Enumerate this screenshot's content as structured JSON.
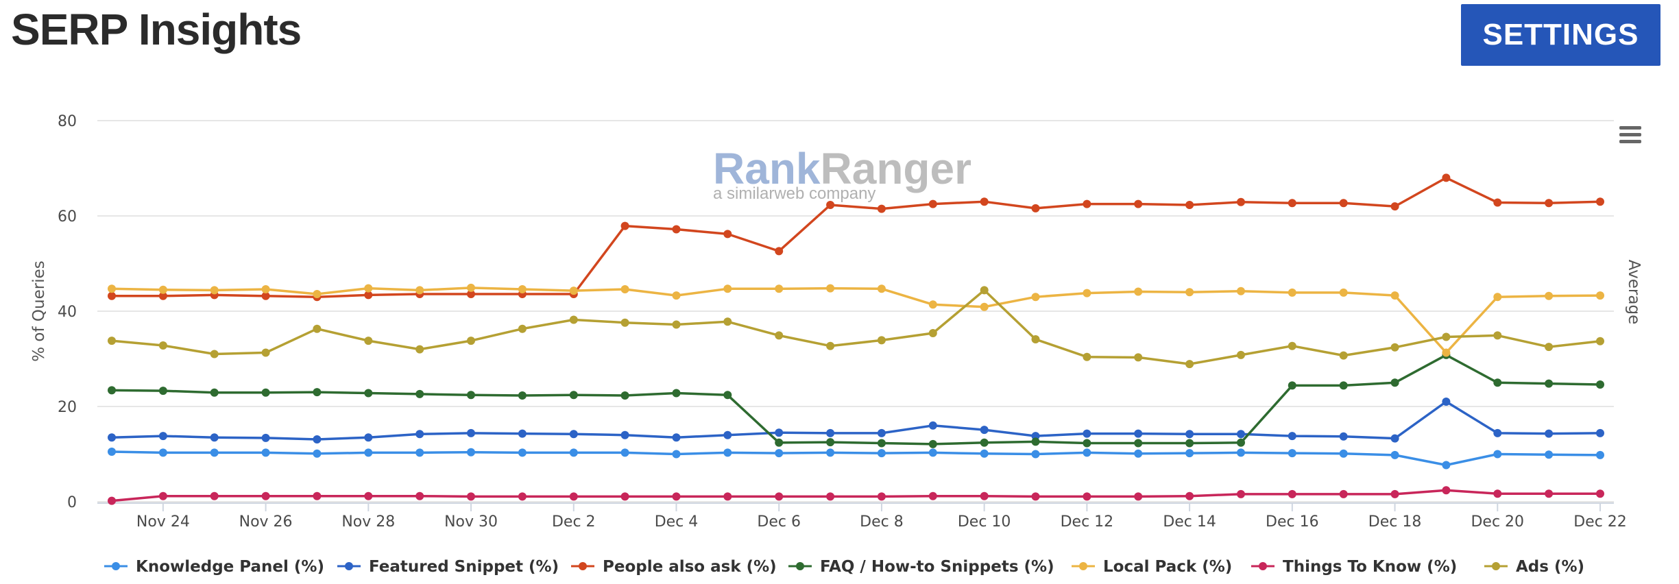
{
  "page": {
    "title": "SERP Insights",
    "settings_label": "SETTINGS"
  },
  "watermark": {
    "brand_first": "Rank",
    "brand_second": "Ranger",
    "subtitle": "a similarweb company"
  },
  "colors": {
    "settings_button": "#2556b8",
    "gridline": "#e6e6e6"
  },
  "chart_data": {
    "type": "line",
    "xlabel": "",
    "ylabel": "% of Queries",
    "ylabel_right": "Average",
    "ylim": [
      0,
      80
    ],
    "yticks": [
      0,
      20,
      40,
      60,
      80
    ],
    "grid": true,
    "legend_position": "bottom",
    "x": [
      "Nov 23",
      "Nov 24",
      "Nov 25",
      "Nov 26",
      "Nov 27",
      "Nov 28",
      "Nov 29",
      "Nov 30",
      "Dec 1",
      "Dec 2",
      "Dec 3",
      "Dec 4",
      "Dec 5",
      "Dec 6",
      "Dec 7",
      "Dec 8",
      "Dec 9",
      "Dec 10",
      "Dec 11",
      "Dec 12",
      "Dec 13",
      "Dec 14",
      "Dec 15",
      "Dec 16",
      "Dec 17",
      "Dec 18",
      "Dec 19",
      "Dec 20",
      "Dec 21",
      "Dec 22"
    ],
    "x_tick_labels": [
      "Nov 24",
      "Nov 26",
      "Nov 28",
      "Nov 30",
      "Dec 2",
      "Dec 4",
      "Dec 6",
      "Dec 8",
      "Dec 10",
      "Dec 12",
      "Dec 14",
      "Dec 16",
      "Dec 18",
      "Dec 20",
      "Dec 22"
    ],
    "series": [
      {
        "name": "Knowledge Panel (%)",
        "color": "#3a8ee6",
        "values": [
          10.5,
          10.3,
          10.3,
          10.3,
          10.1,
          10.3,
          10.3,
          10.4,
          10.3,
          10.3,
          10.3,
          10.0,
          10.3,
          10.2,
          10.3,
          10.2,
          10.3,
          10.1,
          10.0,
          10.3,
          10.1,
          10.2,
          10.3,
          10.2,
          10.1,
          9.8,
          7.7,
          10.0,
          9.9,
          9.8
        ]
      },
      {
        "name": "Featured Snippet (%)",
        "color": "#2c63c6",
        "values": [
          13.5,
          13.8,
          13.5,
          13.4,
          13.1,
          13.5,
          14.2,
          14.4,
          14.3,
          14.2,
          14.0,
          13.5,
          14.0,
          14.5,
          14.4,
          14.4,
          16.0,
          15.1,
          13.8,
          14.3,
          14.3,
          14.2,
          14.2,
          13.8,
          13.7,
          13.3,
          21.0,
          14.4,
          14.3,
          14.4
        ]
      },
      {
        "name": "People also ask (%)",
        "color": "#d2461e",
        "values": [
          43.2,
          43.2,
          43.4,
          43.2,
          43.0,
          43.4,
          43.6,
          43.6,
          43.6,
          43.6,
          57.9,
          57.2,
          56.2,
          52.6,
          62.3,
          61.5,
          62.5,
          63.0,
          61.6,
          62.5,
          62.5,
          62.3,
          62.9,
          62.7,
          62.7,
          62.0,
          68.0,
          62.8,
          62.7,
          63.0
        ]
      },
      {
        "name": "FAQ / How-to Snippets (%)",
        "color": "#2e6b30",
        "values": [
          23.4,
          23.3,
          22.9,
          22.9,
          23.0,
          22.8,
          22.6,
          22.4,
          22.3,
          22.4,
          22.3,
          22.8,
          22.4,
          12.4,
          12.5,
          12.3,
          12.1,
          12.4,
          12.6,
          12.3,
          12.3,
          12.3,
          12.4,
          24.4,
          24.4,
          25.0,
          30.8,
          25.0,
          24.8,
          24.6
        ]
      },
      {
        "name": "Local Pack (%)",
        "color": "#ecb443",
        "values": [
          44.7,
          44.5,
          44.4,
          44.6,
          43.6,
          44.8,
          44.4,
          44.9,
          44.6,
          44.3,
          44.6,
          43.3,
          44.7,
          44.7,
          44.8,
          44.7,
          41.4,
          40.9,
          43.0,
          43.8,
          44.1,
          44.0,
          44.2,
          43.9,
          43.9,
          43.3,
          31.3,
          43.0,
          43.2,
          43.3
        ]
      },
      {
        "name": "Things To Know (%)",
        "color": "#c8265a",
        "values": [
          0.2,
          1.2,
          1.2,
          1.2,
          1.2,
          1.2,
          1.2,
          1.1,
          1.1,
          1.1,
          1.1,
          1.1,
          1.1,
          1.1,
          1.1,
          1.1,
          1.2,
          1.2,
          1.1,
          1.1,
          1.1,
          1.2,
          1.6,
          1.6,
          1.6,
          1.6,
          2.4,
          1.7,
          1.7,
          1.7
        ]
      },
      {
        "name": "Ads (%)",
        "color": "#b5a033",
        "values": [
          33.8,
          32.8,
          31.0,
          31.3,
          36.3,
          33.8,
          32.0,
          33.8,
          36.3,
          38.2,
          37.6,
          37.2,
          37.8,
          34.9,
          32.7,
          33.9,
          35.4,
          44.4,
          34.1,
          30.4,
          30.3,
          28.9,
          30.8,
          32.7,
          30.7,
          32.4,
          34.6,
          34.9,
          32.5,
          33.7
        ]
      }
    ]
  }
}
